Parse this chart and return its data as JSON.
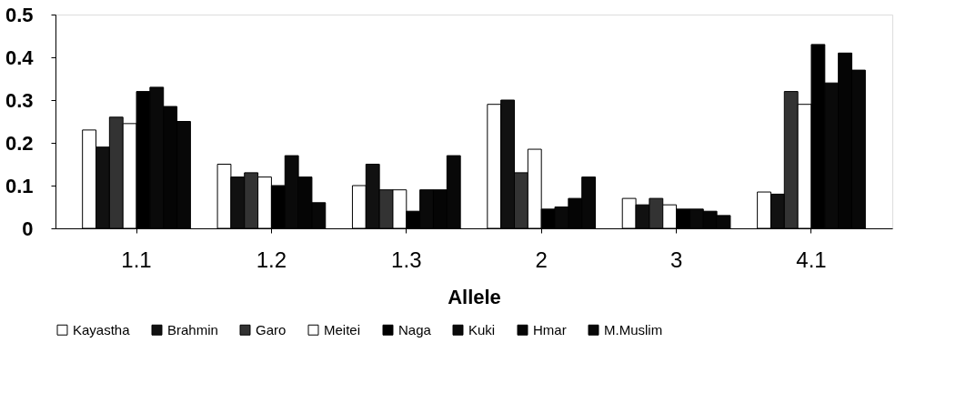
{
  "chart_data": {
    "type": "bar",
    "xlabel": "Allele",
    "categories": [
      "1.1",
      "1.2",
      "1.3",
      "2",
      "3",
      "4.1"
    ],
    "series": [
      {
        "name": "Kayastha",
        "color": "#ffffff",
        "values": [
          0.23,
          0.15,
          0.1,
          0.29,
          0.07,
          0.085
        ]
      },
      {
        "name": "Brahmin",
        "color": "#111111",
        "values": [
          0.19,
          0.12,
          0.15,
          0.3,
          0.055,
          0.08
        ]
      },
      {
        "name": "Garo",
        "color": "#333333",
        "values": [
          0.26,
          0.13,
          0.09,
          0.13,
          0.07,
          0.32
        ]
      },
      {
        "name": "Meitei",
        "color": "#ffffff",
        "values": [
          0.245,
          0.12,
          0.09,
          0.185,
          0.055,
          0.29
        ]
      },
      {
        "name": "Naga",
        "color": "#000000",
        "values": [
          0.32,
          0.1,
          0.04,
          0.045,
          0.045,
          0.43
        ]
      },
      {
        "name": "Kuki",
        "color": "#0a0a0a",
        "values": [
          0.33,
          0.17,
          0.09,
          0.05,
          0.045,
          0.34
        ]
      },
      {
        "name": "Hmar",
        "color": "#050505",
        "values": [
          0.285,
          0.12,
          0.09,
          0.07,
          0.04,
          0.41
        ]
      },
      {
        "name": "M.Muslim",
        "color": "#080808",
        "values": [
          0.25,
          0.06,
          0.17,
          0.12,
          0.03,
          0.37
        ]
      }
    ],
    "ylim": [
      0,
      0.5
    ],
    "yticks": [
      0,
      0.1,
      0.2,
      0.3,
      0.4,
      0.5
    ],
    "grid": false,
    "legend": "bottom"
  }
}
